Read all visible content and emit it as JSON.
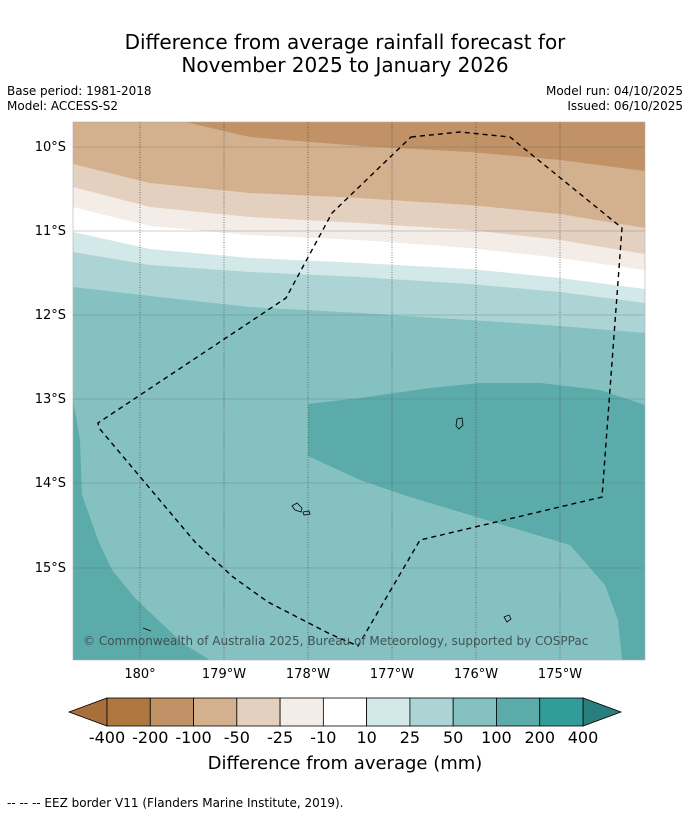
{
  "title": {
    "line1": "Difference from average rainfall forecast for",
    "line2": "November 2025 to January 2026"
  },
  "meta": {
    "base_period": "Base period: 1981-2018",
    "model": "Model: ACCESS-S2",
    "model_run": "Model run: 04/10/2025",
    "issued": "Issued: 06/10/2025"
  },
  "map": {
    "lat_labels": [
      "10°S",
      "11°S",
      "12°S",
      "13°S",
      "14°S",
      "15°S"
    ],
    "lon_labels": [
      "180°",
      "179°W",
      "178°W",
      "177°W",
      "176°W",
      "175°W"
    ],
    "copyright": "© Commonwealth of Australia 2025, Bureau of Meteorology, supported by COSPPac"
  },
  "colorbar": {
    "ticks": [
      "-400",
      "-200",
      "-100",
      "-50",
      "-25",
      "-10",
      "10",
      "25",
      "50",
      "100",
      "200",
      "400"
    ],
    "colors": [
      "#a86f3a",
      "#ae7740",
      "#c09266",
      "#d3b08e",
      "#e4d0bf",
      "#f4ece7",
      "#ffffff",
      "#d3e8e8",
      "#acd4d4",
      "#84c1c0",
      "#5babab",
      "#329c9a",
      "#2a7f7e"
    ],
    "title": "Difference from average (mm)"
  },
  "footer": "-- -- -- EEZ border V11 (Flanders Marine Institute, 2019)."
}
